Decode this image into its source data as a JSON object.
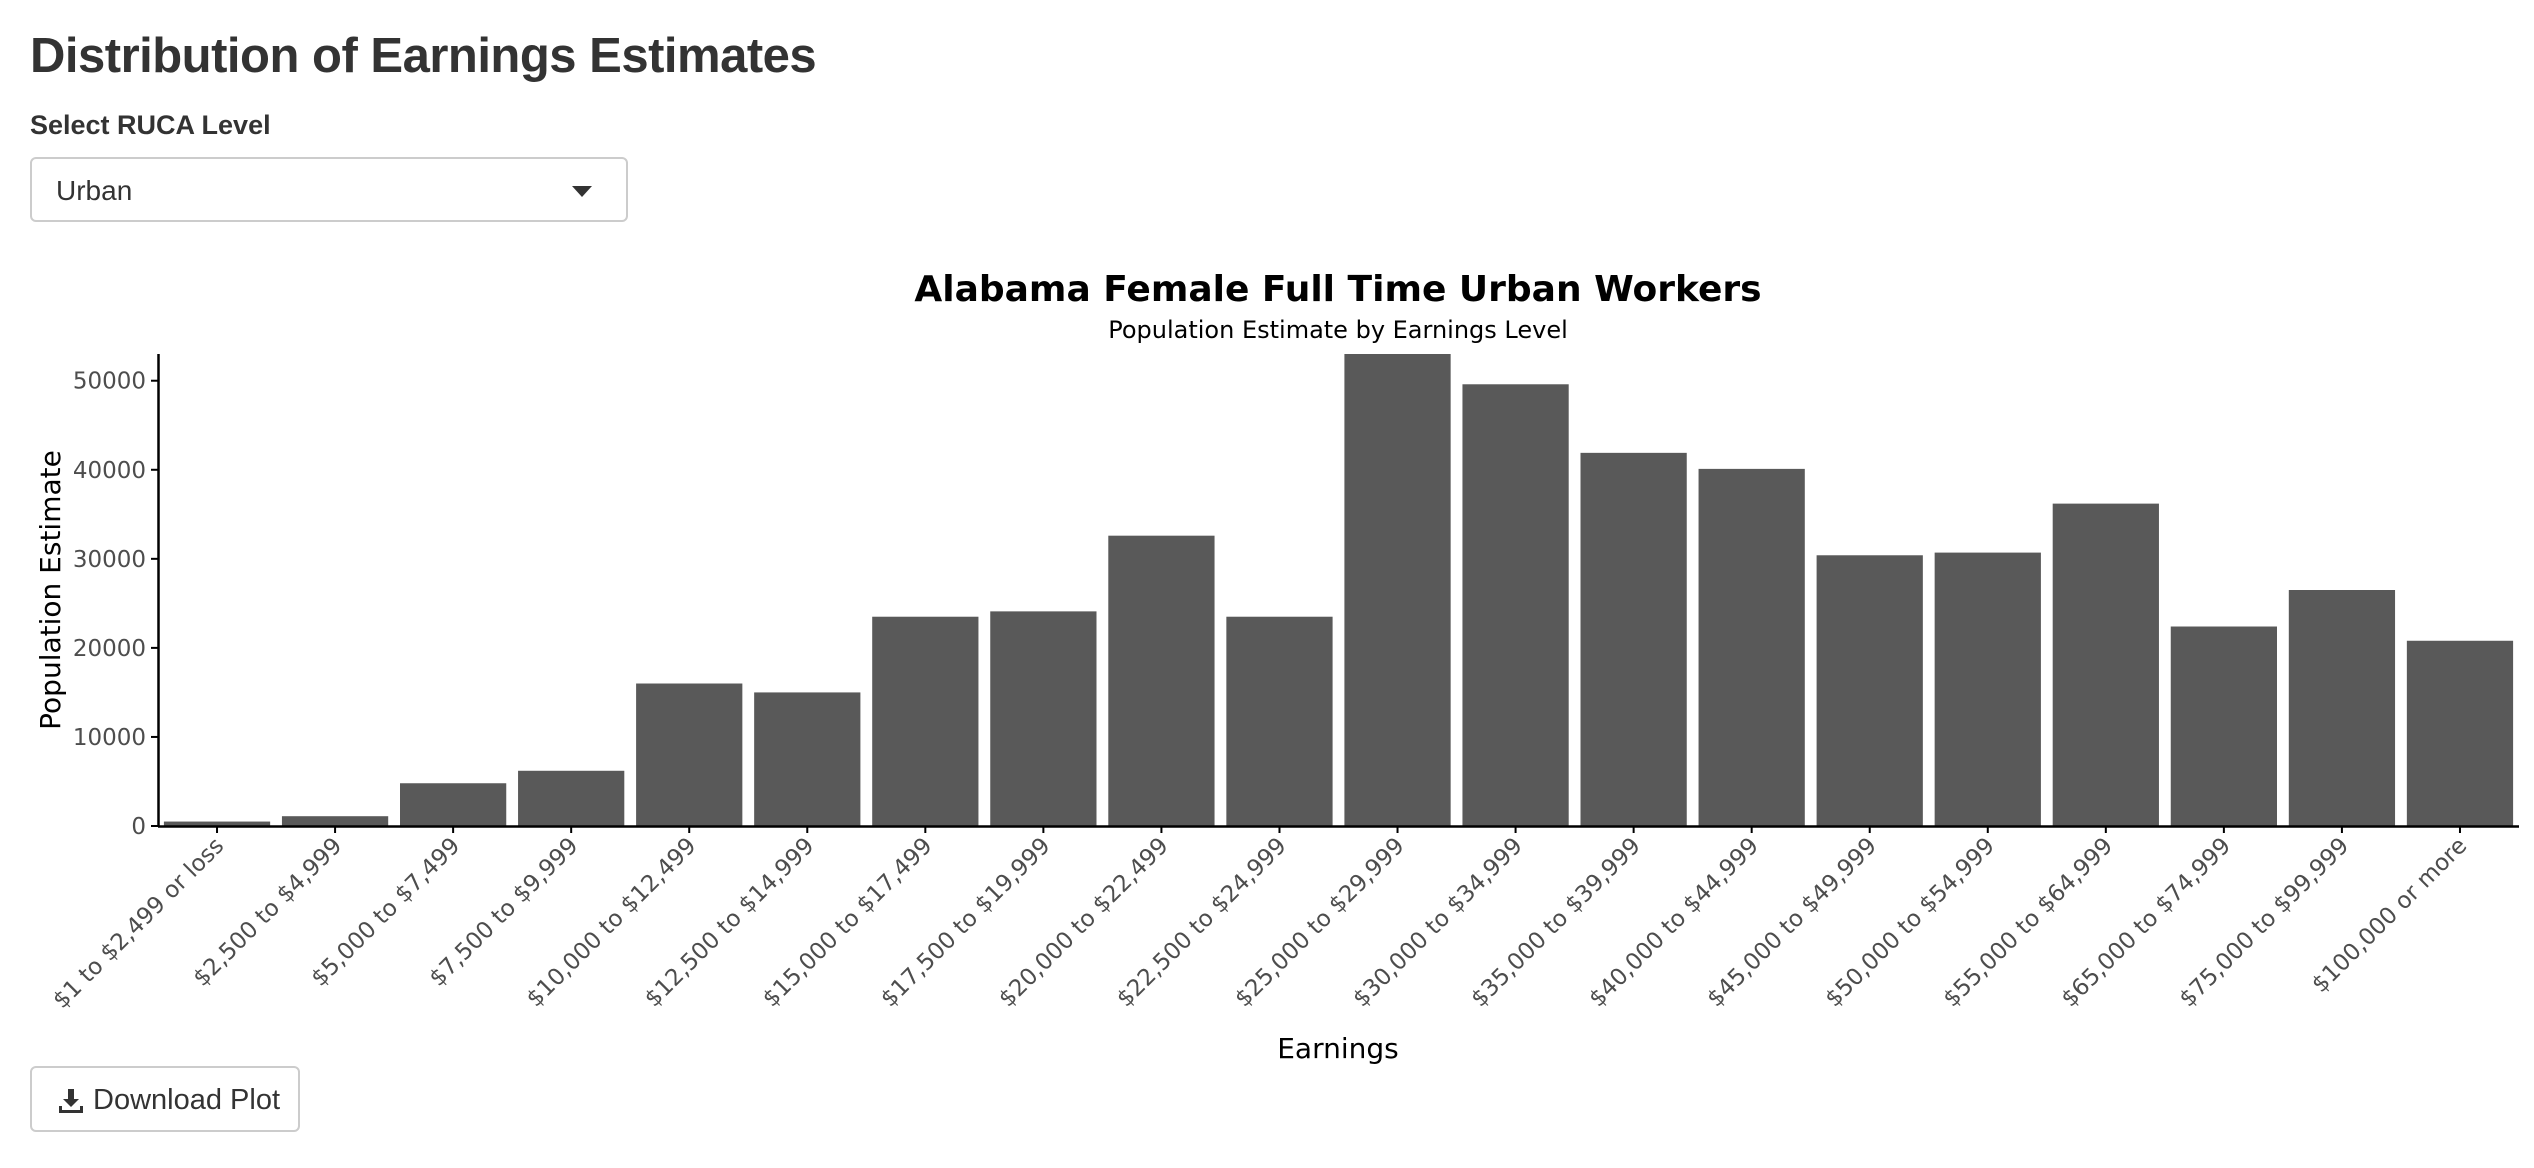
{
  "page": {
    "title": "Distribution of Earnings Estimates"
  },
  "ruca_select": {
    "label": "Select RUCA Level",
    "value": "Urban"
  },
  "download": {
    "label": "Download Plot",
    "icon": "download-icon"
  },
  "colors": {
    "bar": "#595959",
    "axis": "#000000",
    "tick_text": "#4d4d4d"
  },
  "chart_data": {
    "type": "bar",
    "title": "Alabama Female Full Time Urban Workers",
    "subtitle": "Population Estimate by Earnings Level",
    "xlabel": "Earnings",
    "ylabel": "Population Estimate",
    "ylim": [
      0,
      53000
    ],
    "yticks": [
      0,
      10000,
      20000,
      30000,
      40000,
      50000
    ],
    "grid": false,
    "categories": [
      "$1 to $2,499 or loss",
      "$2,500 to $4,999",
      "$5,000 to $7,499",
      "$7,500 to $9,999",
      "$10,000 to $12,499",
      "$12,500 to $14,999",
      "$15,000 to $17,499",
      "$17,500 to $19,999",
      "$20,000 to $22,499",
      "$22,500 to $24,999",
      "$25,000 to $29,999",
      "$30,000 to $34,999",
      "$35,000 to $39,999",
      "$40,000 to $44,999",
      "$45,000 to $49,999",
      "$50,000 to $54,999",
      "$55,000 to $64,999",
      "$65,000 to $74,999",
      "$75,000 to $99,999",
      "$100,000 or more"
    ],
    "values": [
      500,
      1100,
      4800,
      6200,
      16000,
      15000,
      23500,
      24100,
      32600,
      23500,
      53000,
      49600,
      41900,
      40100,
      30400,
      30700,
      36200,
      22400,
      26500,
      20800
    ]
  }
}
